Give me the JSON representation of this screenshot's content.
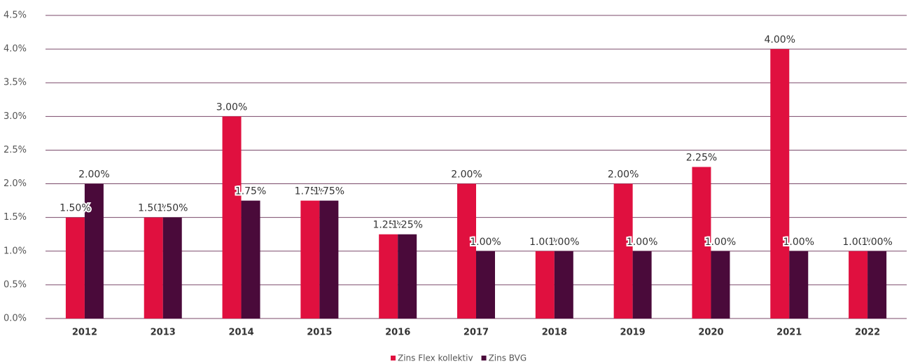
{
  "chart_data": {
    "type": "bar",
    "categories": [
      "2012",
      "2013",
      "2014",
      "2015",
      "2016",
      "2017",
      "2018",
      "2019",
      "2020",
      "2021",
      "2022"
    ],
    "series": [
      {
        "name": "Zins Flex kollektiv",
        "color": "#e0103f",
        "values": [
          1.5,
          1.5,
          3.0,
          1.75,
          1.25,
          2.0,
          1.0,
          2.0,
          2.25,
          4.0,
          1.0
        ],
        "value_labels": [
          "1.50%",
          "1.50%",
          "3.00%",
          "1.75%",
          "1.25%",
          "2.00%",
          "1.00%",
          "2.00%",
          "2.25%",
          "4.00%",
          "1.00%"
        ]
      },
      {
        "name": "Zins BVG",
        "color": "#4a0a3a",
        "values": [
          2.0,
          1.5,
          1.75,
          1.75,
          1.25,
          1.0,
          1.0,
          1.0,
          1.0,
          1.0,
          1.0
        ],
        "value_labels": [
          "2.00%",
          "1.50%",
          "1.75%",
          "1.75%",
          "1.25%",
          "1.00%",
          "1.00%",
          "1.00%",
          "1.00%",
          "1.00%",
          "1.00%"
        ]
      }
    ],
    "ylim": [
      0,
      4.5
    ],
    "yticks": [
      {
        "value": 0,
        "label": "0.0%"
      },
      {
        "value": 0.5,
        "label": "0.5%"
      },
      {
        "value": 1,
        "label": "1.0%"
      },
      {
        "value": 1.5,
        "label": "1.5%"
      },
      {
        "value": 2,
        "label": "2.0%"
      },
      {
        "value": 2.5,
        "label": "2.5%"
      },
      {
        "value": 3,
        "label": "3.0%"
      },
      {
        "value": 3.5,
        "label": "3.5%"
      },
      {
        "value": 4,
        "label": "4.0%"
      },
      {
        "value": 4.5,
        "label": "4.5%"
      }
    ],
    "grid": true,
    "legend": "bottom"
  }
}
